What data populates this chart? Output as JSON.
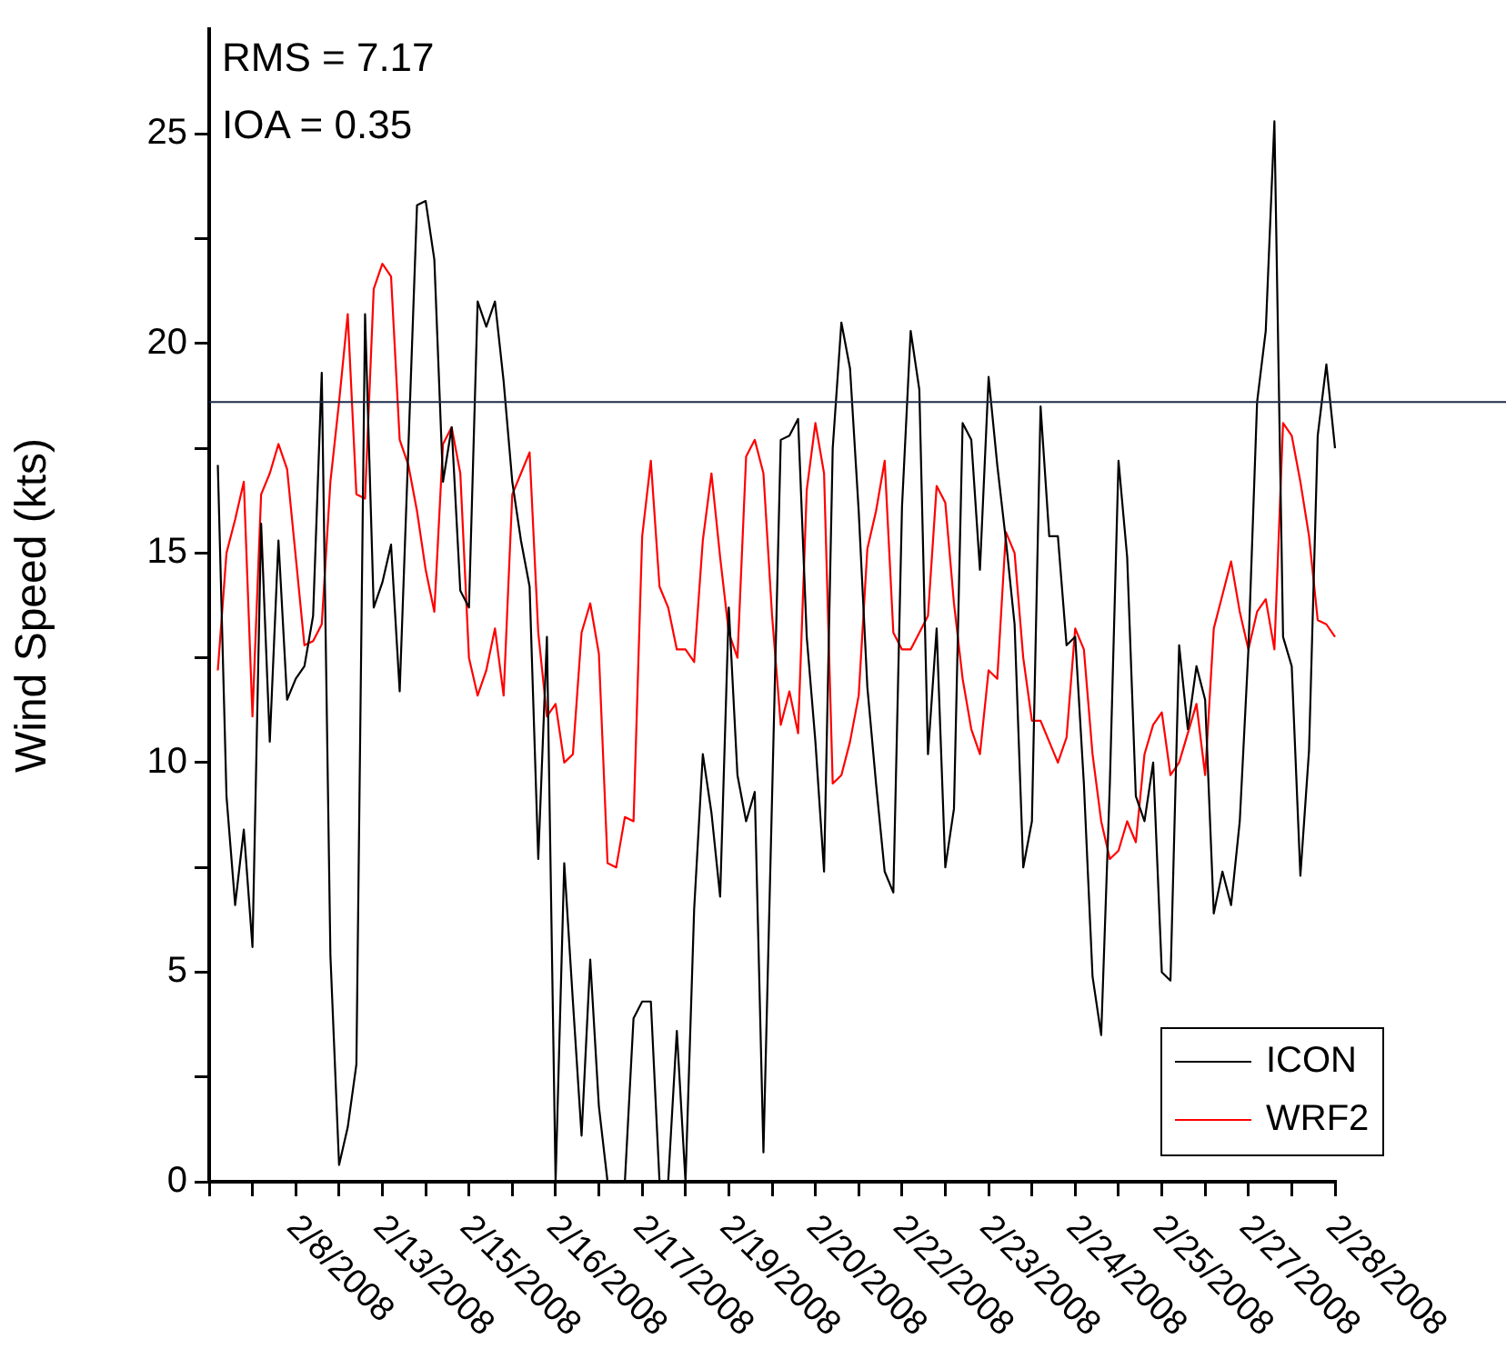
{
  "chart_data": {
    "type": "line",
    "ylabel": "Wind Speed (kts)",
    "categories": [
      null,
      null,
      null,
      null,
      null,
      null,
      null,
      null,
      null,
      null,
      "2/8/2008",
      null,
      null,
      null,
      null,
      null,
      null,
      null,
      null,
      null,
      "2/13/2008",
      null,
      null,
      null,
      null,
      null,
      null,
      null,
      null,
      null,
      "2/15/2008",
      null,
      null,
      null,
      null,
      null,
      null,
      null,
      null,
      null,
      "2/16/2008",
      null,
      null,
      null,
      null,
      null,
      null,
      null,
      null,
      null,
      "2/17/2008",
      null,
      null,
      null,
      null,
      null,
      null,
      null,
      null,
      null,
      "2/19/2008",
      null,
      null,
      null,
      null,
      null,
      null,
      null,
      null,
      null,
      "2/20/2008",
      null,
      null,
      null,
      null,
      null,
      null,
      null,
      null,
      null,
      "2/22/2008",
      null,
      null,
      null,
      null,
      null,
      null,
      null,
      null,
      null,
      "2/23/2008",
      null,
      null,
      null,
      null,
      null,
      null,
      null,
      null,
      null,
      "2/24/2008",
      null,
      null,
      null,
      null,
      null,
      null,
      null,
      null,
      null,
      "2/25/2008",
      null,
      null,
      null,
      null,
      null,
      null,
      null,
      null,
      null,
      "2/27/2008",
      null,
      null,
      null,
      null,
      null,
      null,
      null,
      null,
      null,
      "2/28/2008"
    ],
    "series": [
      {
        "name": "ICON",
        "color": "#000000",
        "values": [
          null,
          17.1,
          9.2,
          6.6,
          8.4,
          5.6,
          15.7,
          10.5,
          15.3,
          11.5,
          12.0,
          12.3,
          13.5,
          19.3,
          5.4,
          0.4,
          1.3,
          2.8,
          20.7,
          13.7,
          14.3,
          15.2,
          11.7,
          17.5,
          23.3,
          23.4,
          22.0,
          16.7,
          18.0,
          14.1,
          13.7,
          21.0,
          20.4,
          21.0,
          19.1,
          16.7,
          15.3,
          14.2,
          7.7,
          13.0,
          0,
          7.6,
          4.3,
          1.1,
          5.3,
          1.8,
          0,
          0,
          0,
          3.9,
          4.3,
          4.3,
          0,
          0,
          3.6,
          0,
          6.5,
          10.2,
          8.8,
          6.8,
          13.7,
          9.7,
          8.6,
          9.3,
          0.7,
          9.2,
          17.7,
          17.8,
          18.2,
          13.0,
          10.5,
          7.4,
          17.5,
          20.5,
          19.4,
          16.0,
          11.8,
          9.5,
          7.4,
          6.9,
          16.1,
          20.3,
          18.9,
          10.2,
          13.2,
          7.5,
          8.9,
          18.1,
          17.7,
          14.6,
          19.2,
          17.1,
          15.3,
          13.3,
          7.5,
          8.6,
          18.5,
          15.4,
          15.4,
          12.8,
          13.0,
          9.5,
          4.9,
          3.5,
          9.5,
          17.2,
          14.9,
          9.2,
          8.6,
          10.0,
          5.0,
          4.8,
          12.8,
          10.8,
          12.3,
          11.5,
          6.4,
          7.4,
          6.6,
          8.6,
          12.7,
          18.6,
          20.3,
          25.3,
          13.0,
          12.3,
          7.3,
          10.3,
          17.8,
          19.5,
          17.5
        ]
      },
      {
        "name": "WRF2",
        "color": "#ff0000",
        "values": [
          null,
          12.2,
          15.0,
          15.8,
          16.7,
          11.1,
          16.4,
          16.9,
          17.6,
          17.0,
          14.9,
          12.8,
          12.9,
          13.3,
          16.7,
          18.6,
          20.7,
          16.4,
          16.3,
          21.3,
          21.9,
          21.6,
          17.7,
          17.1,
          16.0,
          14.6,
          13.6,
          17.6,
          18.0,
          16.9,
          12.5,
          11.6,
          12.2,
          13.2,
          11.6,
          16.4,
          16.9,
          17.4,
          13.1,
          11.1,
          11.4,
          10.0,
          10.2,
          13.1,
          13.8,
          12.6,
          7.6,
          7.5,
          8.7,
          8.6,
          15.4,
          17.2,
          14.2,
          13.7,
          12.7,
          12.7,
          12.4,
          15.3,
          16.9,
          14.9,
          13.1,
          12.5,
          17.3,
          17.7,
          16.9,
          13.5,
          10.9,
          11.7,
          10.7,
          16.5,
          18.1,
          16.9,
          9.5,
          9.7,
          10.5,
          11.6,
          15.1,
          16.0,
          17.2,
          13.1,
          12.7,
          12.7,
          13.1,
          13.5,
          16.6,
          16.2,
          13.8,
          12.0,
          10.8,
          10.2,
          12.2,
          12.0,
          15.5,
          15.0,
          12.5,
          11.0,
          11.0,
          10.5,
          10.0,
          10.6,
          13.2,
          12.7,
          10.2,
          8.6,
          7.7,
          7.9,
          8.6,
          8.1,
          10.2,
          10.9,
          11.2,
          9.7,
          10.0,
          10.7,
          11.4,
          9.7,
          13.2,
          14.0,
          14.8,
          13.6,
          12.7,
          13.6,
          13.9,
          12.7,
          18.1,
          17.8,
          16.7,
          15.4,
          13.4,
          13.3,
          13.0
        ]
      }
    ],
    "ylim": [
      0,
      27.5
    ],
    "yticks": [
      0,
      {
        "value": 2.5,
        "label": null
      },
      5,
      {
        "value": 7.5,
        "label": null
      },
      10,
      {
        "value": 12.5,
        "label": null
      },
      15,
      {
        "value": 17.5,
        "label": null
      },
      20,
      {
        "value": 22.5,
        "label": null
      },
      25
    ],
    "ref_lines": [
      {
        "axis": "y",
        "value": 18.6,
        "color": "#1c2a48"
      }
    ],
    "annotations": [
      "RMS = 7.17",
      "IOA = 0.35"
    ],
    "legend": "bottom right",
    "grid": false,
    "marker": "none",
    "line_style": "solid"
  }
}
